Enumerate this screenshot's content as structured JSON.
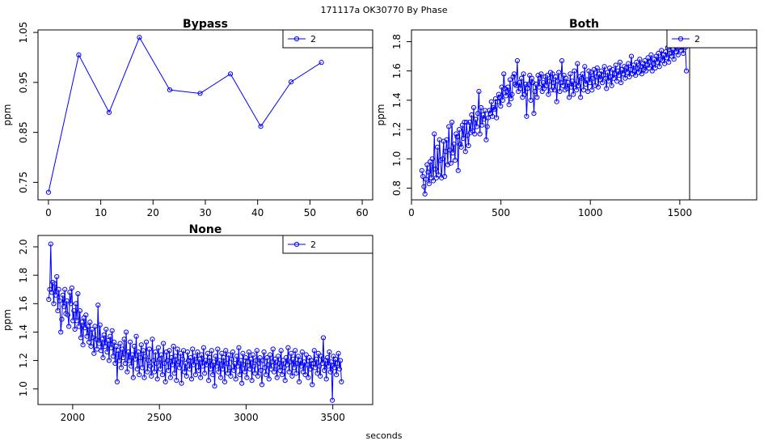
{
  "page": {
    "title": "171117a    OK30770    By Phase",
    "xlabel": "seconds"
  },
  "chart_data": [
    {
      "type": "line",
      "title": "Bypass",
      "ylabel": "ppm",
      "xlim": [
        -2,
        62
      ],
      "ylim": [
        0.715,
        1.055
      ],
      "xticks": [
        0,
        10,
        20,
        30,
        40,
        50,
        60
      ],
      "yticks": [
        0.75,
        0.85,
        0.95,
        1.05
      ],
      "legend": "top-right",
      "series": [
        {
          "name": "2",
          "color": "#0000ff",
          "x": [
            0,
            5.8,
            11.6,
            17.4,
            23.2,
            29,
            34.8,
            40.6,
            46.4,
            52.2
          ],
          "y": [
            0.73,
            1.005,
            0.89,
            1.04,
            0.935,
            0.928,
            0.967,
            0.862,
            0.951,
            0.99
          ]
        }
      ]
    },
    {
      "type": "line",
      "title": "Both",
      "ylabel": "ppm",
      "xlim": [
        0,
        1930
      ],
      "ylim": [
        0.72,
        1.88
      ],
      "xticks": [
        0,
        500,
        1000,
        1500
      ],
      "yticks": [
        0.8,
        1.0,
        1.2,
        1.4,
        1.6,
        1.8
      ],
      "legend": "top-right",
      "vline": 1555,
      "series": [
        {
          "name": "2",
          "color": "#0000ff",
          "x_start": 58,
          "x_step": 5.8,
          "values": [
            0.92,
            0.88,
            0.81,
            0.76,
            0.86,
            0.96,
            0.91,
            0.83,
            0.98,
            0.87,
            1.0,
            0.85,
            1.17,
            0.93,
            0.87,
            1.08,
            0.89,
            1.13,
            0.99,
            0.87,
            1.0,
            1.12,
            0.88,
            1.05,
            1.13,
            0.96,
            1.22,
            1.06,
            0.97,
            1.25,
            1.04,
            1.1,
            0.99,
            1.17,
            1.15,
            0.92,
            1.2,
            1.1,
            1.08,
            1.23,
            1.14,
            1.25,
            1.05,
            1.25,
            1.16,
            1.09,
            1.25,
            1.18,
            1.3,
            1.19,
            1.35,
            1.17,
            1.27,
            1.22,
            1.31,
            1.46,
            1.17,
            1.35,
            1.23,
            1.3,
            1.27,
            1.33,
            1.13,
            1.22,
            1.28,
            1.33,
            1.31,
            1.39,
            1.29,
            1.35,
            1.34,
            1.41,
            1.28,
            1.39,
            1.44,
            1.42,
            1.36,
            1.49,
            1.4,
            1.58,
            1.48,
            1.43,
            1.46,
            1.49,
            1.37,
            1.54,
            1.41,
            1.44,
            1.56,
            1.58,
            1.51,
            1.5,
            1.67,
            1.46,
            1.52,
            1.48,
            1.55,
            1.42,
            1.58,
            1.44,
            1.51,
            1.29,
            1.48,
            1.51,
            1.57,
            1.4,
            1.55,
            1.52,
            1.31,
            1.46,
            1.51,
            1.42,
            1.57,
            1.49,
            1.55,
            1.58,
            1.46,
            1.52,
            1.48,
            1.56,
            1.5,
            1.57,
            1.44,
            1.53,
            1.59,
            1.47,
            1.58,
            1.52,
            1.47,
            1.56,
            1.39,
            1.53,
            1.59,
            1.46,
            1.52,
            1.67,
            1.5,
            1.57,
            1.47,
            1.55,
            1.48,
            1.52,
            1.42,
            1.58,
            1.49,
            1.53,
            1.44,
            1.6,
            1.51,
            1.47,
            1.65,
            1.5,
            1.56,
            1.42,
            1.55,
            1.58,
            1.47,
            1.63,
            1.51,
            1.54,
            1.46,
            1.6,
            1.52,
            1.59,
            1.47,
            1.55,
            1.61,
            1.5,
            1.56,
            1.62,
            1.49,
            1.58,
            1.54,
            1.6,
            1.52,
            1.57,
            1.63,
            1.55,
            1.48,
            1.59,
            1.53,
            1.62,
            1.56,
            1.5,
            1.61,
            1.55,
            1.58,
            1.64,
            1.53,
            1.6,
            1.57,
            1.66,
            1.52,
            1.61,
            1.58,
            1.63,
            1.55,
            1.62,
            1.59,
            1.65,
            1.56,
            1.61,
            1.7,
            1.58,
            1.64,
            1.6,
            1.57,
            1.66,
            1.62,
            1.59,
            1.68,
            1.63,
            1.58,
            1.65,
            1.61,
            1.67,
            1.6,
            1.64,
            1.69,
            1.62,
            1.66,
            1.71,
            1.6,
            1.65,
            1.68,
            1.62,
            1.7,
            1.66,
            1.72,
            1.63,
            1.68,
            1.74,
            1.67,
            1.71,
            1.65,
            1.73,
            1.69,
            1.76,
            1.66,
            1.72,
            1.78,
            1.7,
            1.75,
            1.68,
            1.77,
            1.73,
            1.8,
            1.71,
            1.76,
            1.82,
            1.74,
            1.79,
            1.72,
            1.8,
            1.76,
            1.6
          ]
        }
      ]
    },
    {
      "type": "line",
      "title": "None",
      "ylabel": "ppm",
      "xlim": [
        1800,
        3730
      ],
      "ylim": [
        0.89,
        2.08
      ],
      "xticks": [
        2000,
        2500,
        3000,
        3500
      ],
      "yticks": [
        1.0,
        1.2,
        1.4,
        1.6,
        1.8,
        2.0
      ],
      "legend": "top-right",
      "series": [
        {
          "name": "2",
          "color": "#0000ff",
          "x_start": 1862,
          "x_step": 5.8,
          "values": [
            1.63,
            1.7,
            2.02,
            1.68,
            1.75,
            1.6,
            1.74,
            1.66,
            1.79,
            1.55,
            1.7,
            1.62,
            1.4,
            1.49,
            1.66,
            1.58,
            1.7,
            1.53,
            1.62,
            1.52,
            1.44,
            1.68,
            1.6,
            1.71,
            1.48,
            1.55,
            1.42,
            1.6,
            1.48,
            1.67,
            1.44,
            1.55,
            1.36,
            1.47,
            1.31,
            1.5,
            1.43,
            1.52,
            1.37,
            1.44,
            1.33,
            1.47,
            1.3,
            1.42,
            1.36,
            1.25,
            1.44,
            1.35,
            1.28,
            1.59,
            1.32,
            1.45,
            1.27,
            1.35,
            1.22,
            1.38,
            1.3,
            1.42,
            1.26,
            1.34,
            1.2,
            1.37,
            1.29,
            1.41,
            1.23,
            1.33,
            1.18,
            1.3,
            1.05,
            1.27,
            1.2,
            1.32,
            1.15,
            1.28,
            1.22,
            1.35,
            1.18,
            1.4,
            1.12,
            1.26,
            1.2,
            1.33,
            1.16,
            1.24,
            1.08,
            1.3,
            1.21,
            1.37,
            1.14,
            1.26,
            1.1,
            1.22,
            1.31,
            1.15,
            1.27,
            1.08,
            1.23,
            1.33,
            1.12,
            1.2,
            1.28,
            1.16,
            1.09,
            1.35,
            1.2,
            1.12,
            1.26,
            1.18,
            1.07,
            1.29,
            1.21,
            1.14,
            1.24,
            1.1,
            1.32,
            1.18,
            1.05,
            1.26,
            1.2,
            1.13,
            1.27,
            1.08,
            1.22,
            1.17,
            1.3,
            1.11,
            1.23,
            1.06,
            1.28,
            1.19,
            1.15,
            1.25,
            1.04,
            1.21,
            1.27,
            1.12,
            1.18,
            1.09,
            1.26,
            1.2,
            1.14,
            1.22,
            1.07,
            1.28,
            1.17,
            1.23,
            1.1,
            1.19,
            1.26,
            1.13,
            1.21,
            1.08,
            1.24,
            1.16,
            1.29,
            1.11,
            1.2,
            1.17,
            1.25,
            1.06,
            1.22,
            1.14,
            1.27,
            1.1,
            1.19,
            1.02,
            1.23,
            1.16,
            1.28,
            1.12,
            1.2,
            1.08,
            1.25,
            1.14,
            1.22,
            1.05,
            1.27,
            1.18,
            1.11,
            1.24,
            1.15,
            1.09,
            1.21,
            1.26,
            1.13,
            1.18,
            1.07,
            1.23,
            1.16,
            1.29,
            1.1,
            1.2,
            1.04,
            1.25,
            1.17,
            1.12,
            1.22,
            1.08,
            1.19,
            1.26,
            1.14,
            1.21,
            1.06,
            1.24,
            1.16,
            1.11,
            1.2,
            1.27,
            1.09,
            1.18,
            1.22,
            1.13,
            1.03,
            1.2,
            1.26,
            1.15,
            1.1,
            1.22,
            1.17,
            1.07,
            1.24,
            1.14,
            1.19,
            1.28,
            1.12,
            1.21,
            1.16,
            1.08,
            1.23,
            1.18,
            1.13,
            1.27,
            1.1,
            1.2,
            1.15,
            1.06,
            1.22,
            1.17,
            1.29,
            1.12,
            1.19,
            1.25,
            1.09,
            1.21,
            1.15,
            1.27,
            1.11,
            1.18,
            1.23,
            1.05,
            1.2,
            1.16,
            1.26,
            1.12,
            1.19,
            1.1,
            1.24,
            1.17,
            1.08,
            1.22,
            1.14,
            1.2,
            1.03,
            1.18,
            1.27,
            1.15,
            1.21,
            1.11,
            1.25,
            1.16,
            1.09,
            1.23,
            1.18,
            1.36,
            1.13,
            1.2,
            1.07,
            1.22,
            1.16,
            1.26,
            1.12,
            1.19,
            0.92,
            1.23,
            1.15,
            1.21,
            1.1,
            1.18,
            1.25,
            1.14,
            1.2,
            1.05
          ]
        }
      ]
    }
  ]
}
